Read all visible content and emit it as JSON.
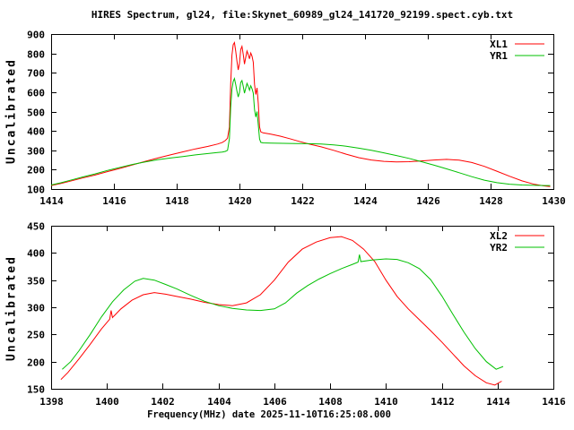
{
  "title": "HIRES Spectrum, gl24, file:Skynet_60989_gl24_141720_92199.spect.cyb.txt",
  "xlabel": "Frequency(MHz) date 2025-11-10T16:25:08.000",
  "colors": {
    "background": "#ffffff",
    "text": "#000000",
    "axis": "#000000",
    "xl_red": "#ff0000",
    "yr_green": "#00c000"
  },
  "chart_data": [
    {
      "type": "line",
      "name": "top-spectrum-plot",
      "ylabel": "Uncalibrated",
      "xlim": [
        1414,
        1430
      ],
      "ylim": [
        100,
        900
      ],
      "xticks": [
        1414,
        1416,
        1418,
        1420,
        1422,
        1424,
        1426,
        1428,
        1430
      ],
      "yticks": [
        100,
        200,
        300,
        400,
        500,
        600,
        700,
        800,
        900
      ],
      "grid": false,
      "legend_position": "top-right-inside",
      "series": [
        {
          "name": "XL1",
          "color": "#ff0000",
          "points": [
            [
              1414.0,
              118
            ],
            [
              1414.3,
              128
            ],
            [
              1414.6,
              140
            ],
            [
              1415.0,
              157
            ],
            [
              1415.4,
              172
            ],
            [
              1415.8,
              190
            ],
            [
              1416.2,
              207
            ],
            [
              1416.6,
              225
            ],
            [
              1417.0,
              243
            ],
            [
              1417.4,
              260
            ],
            [
              1417.8,
              276
            ],
            [
              1418.2,
              292
            ],
            [
              1418.6,
              307
            ],
            [
              1419.0,
              320
            ],
            [
              1419.3,
              332
            ],
            [
              1419.45,
              340
            ],
            [
              1419.55,
              350
            ],
            [
              1419.62,
              362
            ],
            [
              1419.68,
              420
            ],
            [
              1419.72,
              640
            ],
            [
              1419.76,
              790
            ],
            [
              1419.8,
              845
            ],
            [
              1419.84,
              856
            ],
            [
              1419.88,
              812
            ],
            [
              1419.92,
              760
            ],
            [
              1419.96,
              715
            ],
            [
              1420.0,
              748
            ],
            [
              1420.04,
              820
            ],
            [
              1420.08,
              836
            ],
            [
              1420.12,
              795
            ],
            [
              1420.16,
              745
            ],
            [
              1420.2,
              780
            ],
            [
              1420.24,
              812
            ],
            [
              1420.28,
              794
            ],
            [
              1420.32,
              772
            ],
            [
              1420.36,
              802
            ],
            [
              1420.4,
              786
            ],
            [
              1420.44,
              755
            ],
            [
              1420.48,
              640
            ],
            [
              1420.52,
              588
            ],
            [
              1420.56,
              622
            ],
            [
              1420.6,
              540
            ],
            [
              1420.64,
              420
            ],
            [
              1420.68,
              395
            ],
            [
              1420.75,
              390
            ],
            [
              1421.0,
              383
            ],
            [
              1421.3,
              373
            ],
            [
              1421.6,
              360
            ],
            [
              1421.9,
              346
            ],
            [
              1422.2,
              333
            ],
            [
              1422.6,
              318
            ],
            [
              1423.0,
              300
            ],
            [
              1423.4,
              280
            ],
            [
              1423.8,
              262
            ],
            [
              1424.2,
              250
            ],
            [
              1424.6,
              243
            ],
            [
              1425.0,
              240
            ],
            [
              1425.4,
              241
            ],
            [
              1425.8,
              245
            ],
            [
              1426.2,
              250
            ],
            [
              1426.6,
              253
            ],
            [
              1427.0,
              249
            ],
            [
              1427.4,
              237
            ],
            [
              1427.8,
              217
            ],
            [
              1428.2,
              192
            ],
            [
              1428.6,
              166
            ],
            [
              1429.0,
              142
            ],
            [
              1429.4,
              124
            ],
            [
              1429.7,
              116
            ],
            [
              1429.9,
              113
            ]
          ]
        },
        {
          "name": "YR1",
          "color": "#00c000",
          "points": [
            [
              1414.0,
              121
            ],
            [
              1414.3,
              132
            ],
            [
              1414.6,
              145
            ],
            [
              1415.0,
              162
            ],
            [
              1415.4,
              178
            ],
            [
              1415.8,
              196
            ],
            [
              1416.2,
              212
            ],
            [
              1416.6,
              227
            ],
            [
              1417.0,
              240
            ],
            [
              1417.4,
              251
            ],
            [
              1417.8,
              260
            ],
            [
              1418.2,
              268
            ],
            [
              1418.6,
              276
            ],
            [
              1419.0,
              283
            ],
            [
              1419.3,
              288
            ],
            [
              1419.45,
              291
            ],
            [
              1419.55,
              294
            ],
            [
              1419.62,
              300
            ],
            [
              1419.68,
              360
            ],
            [
              1419.72,
              520
            ],
            [
              1419.76,
              615
            ],
            [
              1419.8,
              655
            ],
            [
              1419.84,
              670
            ],
            [
              1419.88,
              640
            ],
            [
              1419.92,
              605
            ],
            [
              1419.96,
              575
            ],
            [
              1420.0,
              598
            ],
            [
              1420.04,
              650
            ],
            [
              1420.08,
              660
            ],
            [
              1420.12,
              630
            ],
            [
              1420.16,
              595
            ],
            [
              1420.2,
              620
            ],
            [
              1420.24,
              645
            ],
            [
              1420.28,
              630
            ],
            [
              1420.32,
              610
            ],
            [
              1420.36,
              633
            ],
            [
              1420.4,
              618
            ],
            [
              1420.44,
              595
            ],
            [
              1420.48,
              510
            ],
            [
              1420.52,
              472
            ],
            [
              1420.56,
              500
            ],
            [
              1420.6,
              430
            ],
            [
              1420.64,
              358
            ],
            [
              1420.68,
              341
            ],
            [
              1420.75,
              338
            ],
            [
              1421.0,
              337
            ],
            [
              1421.4,
              336
            ],
            [
              1421.8,
              335
            ],
            [
              1422.2,
              334
            ],
            [
              1422.6,
              332
            ],
            [
              1423.0,
              328
            ],
            [
              1423.4,
              321
            ],
            [
              1423.8,
              311
            ],
            [
              1424.2,
              300
            ],
            [
              1424.6,
              287
            ],
            [
              1425.0,
              273
            ],
            [
              1425.4,
              258
            ],
            [
              1425.8,
              241
            ],
            [
              1426.2,
              223
            ],
            [
              1426.6,
              204
            ],
            [
              1427.0,
              184
            ],
            [
              1427.4,
              164
            ],
            [
              1427.8,
              146
            ],
            [
              1428.2,
              133
            ],
            [
              1428.6,
              125
            ],
            [
              1429.0,
              121
            ],
            [
              1429.4,
              119
            ],
            [
              1429.7,
              118
            ],
            [
              1429.9,
              118
            ]
          ]
        }
      ]
    },
    {
      "type": "line",
      "name": "bottom-spectrum-plot",
      "ylabel": "Uncalibrated",
      "xlim": [
        1398,
        1416
      ],
      "ylim": [
        150,
        450
      ],
      "xticks": [
        1398,
        1400,
        1402,
        1404,
        1406,
        1408,
        1410,
        1412,
        1414,
        1416
      ],
      "yticks": [
        150,
        200,
        250,
        300,
        350,
        400,
        450
      ],
      "grid": false,
      "legend_position": "top-right-inside",
      "series": [
        {
          "name": "XL2",
          "color": "#ff0000",
          "points": [
            [
              1398.35,
              167
            ],
            [
              1398.6,
              180
            ],
            [
              1399.0,
              205
            ],
            [
              1399.4,
              232
            ],
            [
              1399.8,
              260
            ],
            [
              1400.1,
              278
            ],
            [
              1400.15,
              294
            ],
            [
              1400.2,
              281
            ],
            [
              1400.5,
              297
            ],
            [
              1400.9,
              313
            ],
            [
              1401.3,
              323
            ],
            [
              1401.7,
              327
            ],
            [
              1402.1,
              324
            ],
            [
              1402.5,
              320
            ],
            [
              1403.0,
              315
            ],
            [
              1403.5,
              309
            ],
            [
              1404.0,
              305
            ],
            [
              1404.5,
              303
            ],
            [
              1405.0,
              308
            ],
            [
              1405.5,
              323
            ],
            [
              1406.0,
              350
            ],
            [
              1406.5,
              383
            ],
            [
              1407.0,
              407
            ],
            [
              1407.5,
              420
            ],
            [
              1408.0,
              428
            ],
            [
              1408.4,
              430
            ],
            [
              1408.8,
              423
            ],
            [
              1409.2,
              407
            ],
            [
              1409.6,
              384
            ],
            [
              1410.0,
              350
            ],
            [
              1410.4,
              320
            ],
            [
              1410.8,
              297
            ],
            [
              1411.2,
              277
            ],
            [
              1411.6,
              257
            ],
            [
              1412.0,
              236
            ],
            [
              1412.4,
              214
            ],
            [
              1412.8,
              192
            ],
            [
              1413.2,
              174
            ],
            [
              1413.6,
              161
            ],
            [
              1413.9,
              157
            ],
            [
              1414.15,
              164
            ]
          ]
        },
        {
          "name": "YR2",
          "color": "#00c000",
          "points": [
            [
              1398.4,
              186
            ],
            [
              1398.7,
              200
            ],
            [
              1399.0,
              220
            ],
            [
              1399.4,
              250
            ],
            [
              1399.8,
              282
            ],
            [
              1400.2,
              310
            ],
            [
              1400.6,
              332
            ],
            [
              1401.0,
              348
            ],
            [
              1401.3,
              353
            ],
            [
              1401.7,
              350
            ],
            [
              1402.1,
              342
            ],
            [
              1402.5,
              334
            ],
            [
              1403.0,
              322
            ],
            [
              1403.5,
              311
            ],
            [
              1404.0,
              303
            ],
            [
              1404.5,
              298
            ],
            [
              1405.0,
              295
            ],
            [
              1405.5,
              294
            ],
            [
              1406.0,
              297
            ],
            [
              1406.4,
              308
            ],
            [
              1406.8,
              326
            ],
            [
              1407.2,
              340
            ],
            [
              1407.6,
              352
            ],
            [
              1408.0,
              362
            ],
            [
              1408.4,
              371
            ],
            [
              1408.8,
              379
            ],
            [
              1409.0,
              383
            ],
            [
              1409.05,
              397
            ],
            [
              1409.1,
              384
            ],
            [
              1409.5,
              387
            ],
            [
              1410.0,
              389
            ],
            [
              1410.4,
              388
            ],
            [
              1410.8,
              382
            ],
            [
              1411.2,
              371
            ],
            [
              1411.6,
              351
            ],
            [
              1412.0,
              321
            ],
            [
              1412.4,
              287
            ],
            [
              1412.8,
              254
            ],
            [
              1413.2,
              224
            ],
            [
              1413.6,
              200
            ],
            [
              1413.95,
              186
            ],
            [
              1414.2,
              191
            ]
          ]
        }
      ]
    }
  ]
}
